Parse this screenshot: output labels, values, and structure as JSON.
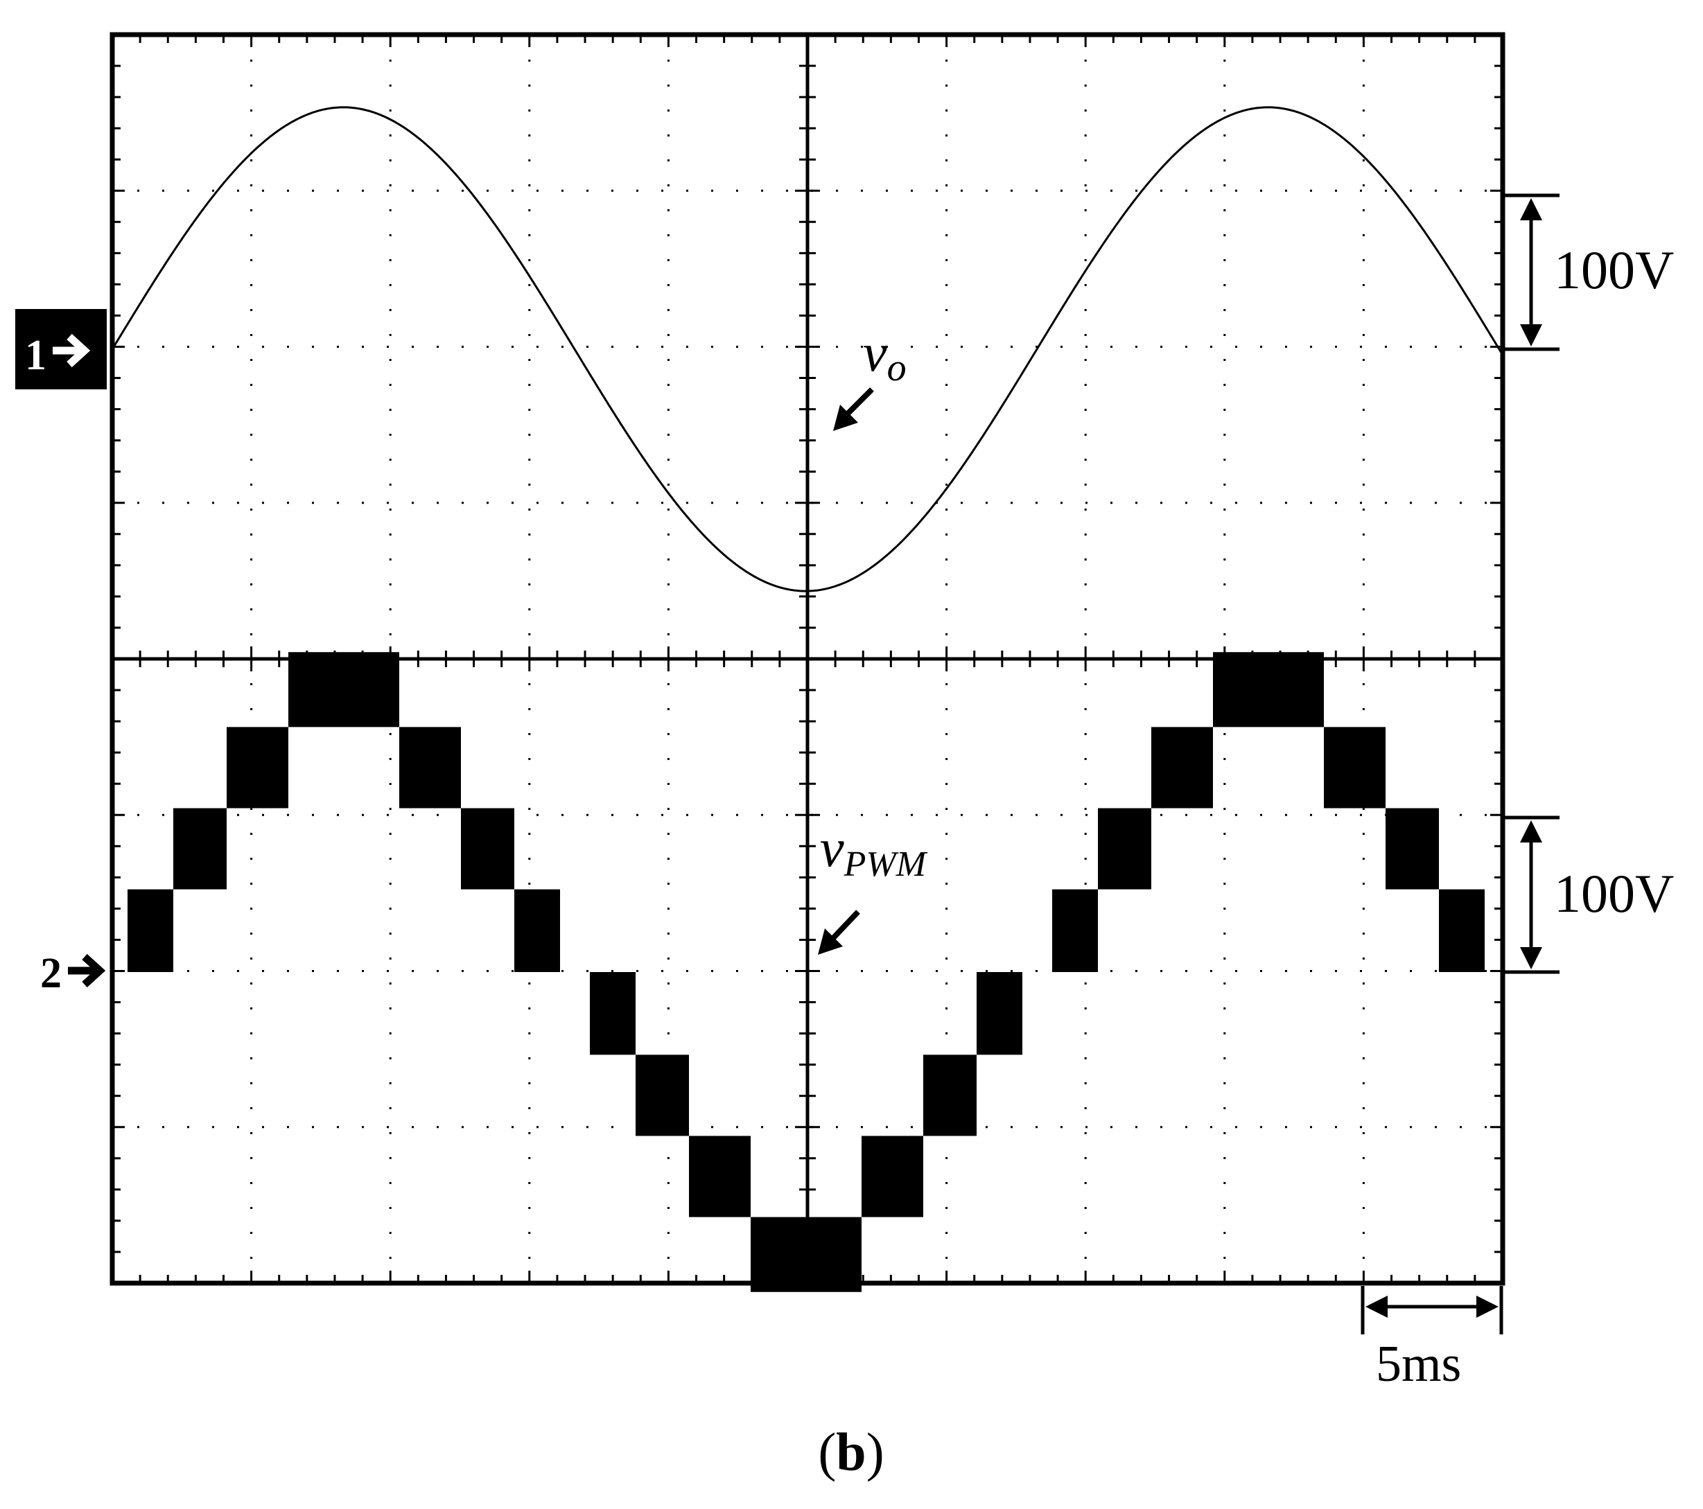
{
  "chart_data": {
    "type": "line",
    "time_division": "5ms",
    "divisions": {
      "x": 10,
      "y": 8
    },
    "series": [
      {
        "channel_marker": "1",
        "label_main": "v",
        "label_sub": "o",
        "scale": "100V",
        "waveform": "sine",
        "amplitude_div": 1.55,
        "period_div": 6.65,
        "phase_start_div": 0.0
      },
      {
        "channel_marker": "2",
        "label_main": "v",
        "label_sub": "PWM",
        "scale": "100V",
        "waveform": "multilevel-stepped",
        "levels_div": [
          0,
          0.53,
          1.05,
          1.57,
          2.05
        ],
        "peak_band_div": [
          1.57,
          2.05
        ],
        "period_div": 6.65,
        "phase_start_div": 0.0
      }
    ],
    "caption": {
      "open": "(",
      "letter": "b",
      "close": ")"
    }
  }
}
